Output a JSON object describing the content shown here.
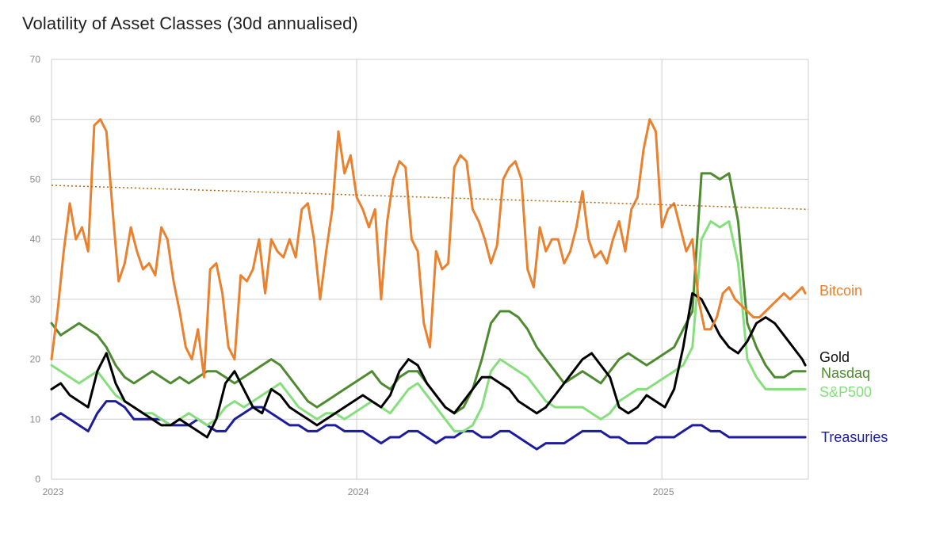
{
  "chart_data": {
    "type": "line",
    "title": "Volatility of Asset Classes (30d annualised)",
    "xlabel": "",
    "ylabel": "",
    "ylim": [
      0,
      70
    ],
    "yticks": [
      0,
      10,
      20,
      30,
      40,
      50,
      60,
      70
    ],
    "xticks": [
      "2023",
      "2024",
      "2025"
    ],
    "xlim": [
      2023.0,
      2025.48
    ],
    "grid": true,
    "colors": {
      "Bitcoin": "#e9812e",
      "Gold": "#000000",
      "Nasdaq": "#4d8a30",
      "S&P500": "#86df7c",
      "Treasuries": "#1c1c9c",
      "trend": "#b06a10",
      "grid": "#cfcfcf"
    },
    "series": [
      {
        "name": "Bitcoin",
        "x": [
          2023.0,
          2023.02,
          2023.04,
          2023.06,
          2023.08,
          2023.1,
          2023.12,
          2023.14,
          2023.16,
          2023.18,
          2023.2,
          2023.22,
          2023.24,
          2023.26,
          2023.28,
          2023.3,
          2023.32,
          2023.34,
          2023.36,
          2023.38,
          2023.4,
          2023.42,
          2023.44,
          2023.46,
          2023.48,
          2023.5,
          2023.52,
          2023.54,
          2023.56,
          2023.58,
          2023.6,
          2023.62,
          2023.64,
          2023.66,
          2023.68,
          2023.7,
          2023.72,
          2023.74,
          2023.76,
          2023.78,
          2023.8,
          2023.82,
          2023.84,
          2023.86,
          2023.88,
          2023.9,
          2023.92,
          2023.94,
          2023.96,
          2023.98,
          2024.0,
          2024.02,
          2024.04,
          2024.06,
          2024.08,
          2024.1,
          2024.12,
          2024.14,
          2024.16,
          2024.18,
          2024.2,
          2024.22,
          2024.24,
          2024.26,
          2024.28,
          2024.3,
          2024.32,
          2024.34,
          2024.36,
          2024.38,
          2024.4,
          2024.42,
          2024.44,
          2024.46,
          2024.48,
          2024.5,
          2024.52,
          2024.54,
          2024.56,
          2024.58,
          2024.6,
          2024.62,
          2024.64,
          2024.66,
          2024.68,
          2024.7,
          2024.72,
          2024.74,
          2024.76,
          2024.78,
          2024.8,
          2024.82,
          2024.84,
          2024.86,
          2024.88,
          2024.9,
          2024.92,
          2024.94,
          2024.96,
          2024.98,
          2025.0,
          2025.02,
          2025.04,
          2025.06,
          2025.08,
          2025.1,
          2025.12,
          2025.14,
          2025.16,
          2025.18,
          2025.2,
          2025.22,
          2025.24,
          2025.26,
          2025.28,
          2025.3,
          2025.32,
          2025.34,
          2025.36,
          2025.38,
          2025.4,
          2025.42,
          2025.44,
          2025.46,
          2025.47
        ],
        "values": [
          20,
          28,
          38,
          46,
          40,
          42,
          38,
          59,
          60,
          58,
          45,
          33,
          36,
          42,
          38,
          35,
          36,
          34,
          42,
          40,
          33,
          28,
          22,
          20,
          25,
          17,
          35,
          36,
          31,
          22,
          20,
          34,
          33,
          35,
          40,
          31,
          40,
          38,
          37,
          40,
          37,
          45,
          46,
          40,
          30,
          38,
          45,
          58,
          51,
          54,
          47,
          45,
          42,
          45,
          30,
          43,
          50,
          53,
          52,
          40,
          38,
          26,
          22,
          38,
          35,
          36,
          52,
          54,
          53,
          45,
          43,
          40,
          36,
          39,
          50,
          52,
          53,
          50,
          35,
          32,
          42,
          38,
          40,
          40,
          36,
          38,
          42,
          48,
          40,
          37,
          38,
          36,
          40,
          43,
          38,
          45,
          47,
          55,
          60,
          58,
          42,
          45,
          46,
          42,
          38,
          40,
          30,
          25,
          25,
          27,
          31,
          32,
          30,
          29,
          28,
          27,
          27,
          28,
          29,
          30,
          31,
          30,
          31,
          32,
          31
        ]
      },
      {
        "name": "Gold",
        "x": [
          2023.0,
          2023.03,
          2023.06,
          2023.09,
          2023.12,
          2023.15,
          2023.18,
          2023.21,
          2023.24,
          2023.27,
          2023.3,
          2023.33,
          2023.36,
          2023.39,
          2023.42,
          2023.45,
          2023.48,
          2023.51,
          2023.54,
          2023.57,
          2023.6,
          2023.63,
          2023.66,
          2023.69,
          2023.72,
          2023.75,
          2023.78,
          2023.81,
          2023.84,
          2023.87,
          2023.9,
          2023.93,
          2023.96,
          2023.99,
          2024.02,
          2024.05,
          2024.08,
          2024.11,
          2024.14,
          2024.17,
          2024.2,
          2024.23,
          2024.26,
          2024.29,
          2024.32,
          2024.35,
          2024.38,
          2024.41,
          2024.44,
          2024.47,
          2024.5,
          2024.53,
          2024.56,
          2024.59,
          2024.62,
          2024.65,
          2024.68,
          2024.71,
          2024.74,
          2024.77,
          2024.8,
          2024.83,
          2024.86,
          2024.89,
          2024.92,
          2024.95,
          2024.98,
          2025.01,
          2025.04,
          2025.07,
          2025.1,
          2025.13,
          2025.16,
          2025.19,
          2025.22,
          2025.25,
          2025.28,
          2025.31,
          2025.34,
          2025.37,
          2025.4,
          2025.43,
          2025.46,
          2025.47
        ],
        "values": [
          15,
          16,
          14,
          13,
          12,
          18,
          21,
          16,
          13,
          12,
          11,
          10,
          9,
          9,
          10,
          9,
          8,
          7,
          10,
          16,
          18,
          15,
          12,
          11,
          15,
          14,
          12,
          11,
          10,
          9,
          10,
          11,
          12,
          13,
          14,
          13,
          12,
          14,
          18,
          20,
          19,
          16,
          14,
          12,
          11,
          13,
          15,
          17,
          17,
          16,
          15,
          13,
          12,
          11,
          12,
          14,
          16,
          18,
          20,
          21,
          19,
          17,
          12,
          11,
          12,
          14,
          13,
          12,
          15,
          22,
          31,
          30,
          27,
          24,
          22,
          21,
          23,
          26,
          27,
          26,
          24,
          22,
          20,
          19
        ]
      },
      {
        "name": "Nasdaq",
        "x": [
          2023.0,
          2023.03,
          2023.06,
          2023.09,
          2023.12,
          2023.15,
          2023.18,
          2023.21,
          2023.24,
          2023.27,
          2023.3,
          2023.33,
          2023.36,
          2023.39,
          2023.42,
          2023.45,
          2023.48,
          2023.51,
          2023.54,
          2023.57,
          2023.6,
          2023.63,
          2023.66,
          2023.69,
          2023.72,
          2023.75,
          2023.78,
          2023.81,
          2023.84,
          2023.87,
          2023.9,
          2023.93,
          2023.96,
          2023.99,
          2024.02,
          2024.05,
          2024.08,
          2024.11,
          2024.14,
          2024.17,
          2024.2,
          2024.23,
          2024.26,
          2024.29,
          2024.32,
          2024.35,
          2024.38,
          2024.41,
          2024.44,
          2024.47,
          2024.5,
          2024.53,
          2024.56,
          2024.59,
          2024.62,
          2024.65,
          2024.68,
          2024.71,
          2024.74,
          2024.77,
          2024.8,
          2024.83,
          2024.86,
          2024.89,
          2024.92,
          2024.95,
          2024.98,
          2025.01,
          2025.04,
          2025.07,
          2025.1,
          2025.13,
          2025.16,
          2025.19,
          2025.22,
          2025.25,
          2025.28,
          2025.31,
          2025.34,
          2025.37,
          2025.4,
          2025.43,
          2025.46,
          2025.47
        ],
        "values": [
          26,
          24,
          25,
          26,
          25,
          24,
          22,
          19,
          17,
          16,
          17,
          18,
          17,
          16,
          17,
          16,
          17,
          18,
          18,
          17,
          16,
          17,
          18,
          19,
          20,
          19,
          17,
          15,
          13,
          12,
          13,
          14,
          15,
          16,
          17,
          18,
          16,
          15,
          17,
          18,
          18,
          16,
          14,
          12,
          11,
          12,
          15,
          20,
          26,
          28,
          28,
          27,
          25,
          22,
          20,
          18,
          16,
          17,
          18,
          17,
          16,
          18,
          20,
          21,
          20,
          19,
          20,
          21,
          22,
          25,
          28,
          51,
          51,
          50,
          51,
          43,
          26,
          22,
          19,
          17,
          17,
          18,
          18,
          18
        ]
      },
      {
        "name": "S&P500",
        "x": [
          2023.0,
          2023.03,
          2023.06,
          2023.09,
          2023.12,
          2023.15,
          2023.18,
          2023.21,
          2023.24,
          2023.27,
          2023.3,
          2023.33,
          2023.36,
          2023.39,
          2023.42,
          2023.45,
          2023.48,
          2023.51,
          2023.54,
          2023.57,
          2023.6,
          2023.63,
          2023.66,
          2023.69,
          2023.72,
          2023.75,
          2023.78,
          2023.81,
          2023.84,
          2023.87,
          2023.9,
          2023.93,
          2023.96,
          2023.99,
          2024.02,
          2024.05,
          2024.08,
          2024.11,
          2024.14,
          2024.17,
          2024.2,
          2024.23,
          2024.26,
          2024.29,
          2024.32,
          2024.35,
          2024.38,
          2024.41,
          2024.44,
          2024.47,
          2024.5,
          2024.53,
          2024.56,
          2024.59,
          2024.62,
          2024.65,
          2024.68,
          2024.71,
          2024.74,
          2024.77,
          2024.8,
          2024.83,
          2024.86,
          2024.89,
          2024.92,
          2024.95,
          2024.98,
          2025.01,
          2025.04,
          2025.07,
          2025.1,
          2025.13,
          2025.16,
          2025.19,
          2025.22,
          2025.25,
          2025.28,
          2025.31,
          2025.34,
          2025.37,
          2025.4,
          2025.43,
          2025.46,
          2025.47
        ],
        "values": [
          19,
          18,
          17,
          16,
          17,
          18,
          16,
          14,
          13,
          12,
          11,
          11,
          10,
          9,
          10,
          11,
          10,
          9,
          10,
          12,
          13,
          12,
          13,
          14,
          15,
          16,
          14,
          12,
          11,
          10,
          11,
          11,
          10,
          11,
          12,
          13,
          12,
          11,
          13,
          15,
          16,
          14,
          12,
          10,
          8,
          8,
          9,
          12,
          18,
          20,
          19,
          18,
          17,
          15,
          13,
          12,
          12,
          12,
          12,
          11,
          10,
          11,
          13,
          14,
          15,
          15,
          16,
          17,
          18,
          19,
          22,
          40,
          43,
          42,
          43,
          36,
          20,
          17,
          15,
          15,
          15,
          15,
          15,
          15
        ]
      },
      {
        "name": "Treasuries",
        "x": [
          2023.0,
          2023.03,
          2023.06,
          2023.09,
          2023.12,
          2023.15,
          2023.18,
          2023.21,
          2023.24,
          2023.27,
          2023.3,
          2023.33,
          2023.36,
          2023.39,
          2023.42,
          2023.45,
          2023.48,
          2023.51,
          2023.54,
          2023.57,
          2023.6,
          2023.63,
          2023.66,
          2023.69,
          2023.72,
          2023.75,
          2023.78,
          2023.81,
          2023.84,
          2023.87,
          2023.9,
          2023.93,
          2023.96,
          2023.99,
          2024.02,
          2024.05,
          2024.08,
          2024.11,
          2024.14,
          2024.17,
          2024.2,
          2024.23,
          2024.26,
          2024.29,
          2024.32,
          2024.35,
          2024.38,
          2024.41,
          2024.44,
          2024.47,
          2024.5,
          2024.53,
          2024.56,
          2024.59,
          2024.62,
          2024.65,
          2024.68,
          2024.71,
          2024.74,
          2024.77,
          2024.8,
          2024.83,
          2024.86,
          2024.89,
          2024.92,
          2024.95,
          2024.98,
          2025.01,
          2025.04,
          2025.07,
          2025.1,
          2025.13,
          2025.16,
          2025.19,
          2025.22,
          2025.25,
          2025.28,
          2025.31,
          2025.34,
          2025.37,
          2025.4,
          2025.43,
          2025.46,
          2025.47
        ],
        "values": [
          10,
          11,
          10,
          9,
          8,
          11,
          13,
          13,
          12,
          10,
          10,
          10,
          10,
          9,
          9,
          9,
          10,
          9,
          8,
          8,
          10,
          11,
          12,
          12,
          11,
          10,
          9,
          9,
          8,
          8,
          9,
          9,
          8,
          8,
          8,
          7,
          6,
          7,
          7,
          8,
          8,
          7,
          6,
          7,
          7,
          8,
          8,
          7,
          7,
          8,
          8,
          7,
          6,
          5,
          6,
          6,
          6,
          7,
          8,
          8,
          8,
          7,
          7,
          6,
          6,
          6,
          7,
          7,
          7,
          8,
          9,
          9,
          8,
          8,
          7,
          7,
          7,
          7,
          7,
          7,
          7,
          7,
          7,
          7
        ]
      }
    ],
    "trendline": {
      "series": "Bitcoin",
      "from": [
        2023.0,
        49
      ],
      "to": [
        2025.48,
        45
      ],
      "style": "dotted"
    },
    "labels": {
      "Bitcoin": "Bitcoin",
      "Gold": "Gold",
      "Nasdaq": "Nasdaq",
      "S&P500": "S&P500",
      "Treasuries": "Treasuries"
    }
  }
}
